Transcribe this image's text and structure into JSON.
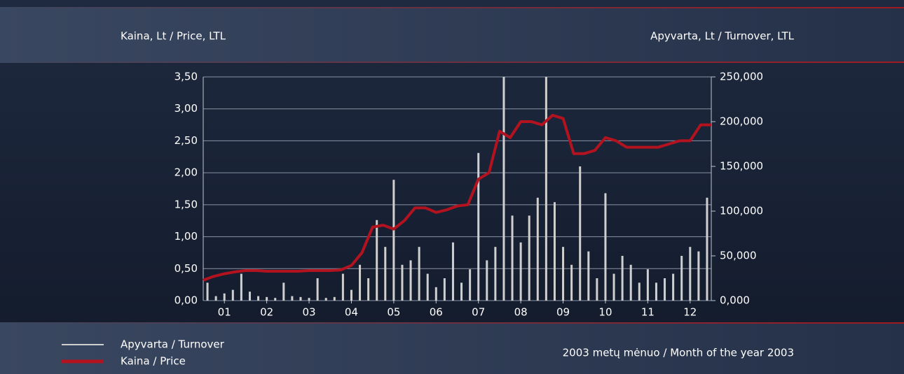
{
  "chart_data": {
    "type": "line",
    "ylabel": "Kaina, Lt / Price, LTL",
    "y2label": "Apyvarta, Lt / Turnover, LTL",
    "xlabel": "2003 metų mėnuo / Month of the year 2003",
    "xlim": [
      0.5,
      12.5
    ],
    "xticks": [
      {
        "value": 1,
        "label": "01"
      },
      {
        "value": 2,
        "label": "02"
      },
      {
        "value": 3,
        "label": "03"
      },
      {
        "value": 4,
        "label": "04"
      },
      {
        "value": 5,
        "label": "05"
      },
      {
        "value": 6,
        "label": "06"
      },
      {
        "value": 7,
        "label": "07"
      },
      {
        "value": 8,
        "label": "08"
      },
      {
        "value": 9,
        "label": "09"
      },
      {
        "value": 10,
        "label": "10"
      },
      {
        "value": 11,
        "label": "11"
      },
      {
        "value": 12,
        "label": "12"
      }
    ],
    "ylim": [
      0,
      3.5
    ],
    "yticks": [
      {
        "value": 0,
        "label": "0,00"
      },
      {
        "value": 0.5,
        "label": "0,50"
      },
      {
        "value": 1,
        "label": "1,00"
      },
      {
        "value": 1.5,
        "label": "1,50"
      },
      {
        "value": 2,
        "label": "2,00"
      },
      {
        "value": 2.5,
        "label": "2,50"
      },
      {
        "value": 3,
        "label": "3,00"
      },
      {
        "value": 3.5,
        "label": "3,50"
      }
    ],
    "y2lim": [
      0,
      250000
    ],
    "y2ticks": [
      {
        "value": 0,
        "label": "0,000"
      },
      {
        "value": 50000,
        "label": "50,000"
      },
      {
        "value": 100000,
        "label": "100,000"
      },
      {
        "value": 150000,
        "label": "150,000"
      },
      {
        "value": 200000,
        "label": "200,000"
      },
      {
        "value": 250000,
        "label": "250,000"
      }
    ],
    "grid": true,
    "series": [
      {
        "name": "Apyvarta / Turnover",
        "color": "#cfcfcf",
        "type": "bar",
        "axis": "y2",
        "x": [
          0.6,
          0.8,
          1.0,
          1.2,
          1.4,
          1.6,
          1.8,
          2.0,
          2.2,
          2.4,
          2.6,
          2.8,
          3.0,
          3.2,
          3.4,
          3.6,
          3.8,
          4.0,
          4.2,
          4.4,
          4.6,
          4.8,
          5.0,
          5.2,
          5.4,
          5.6,
          5.8,
          6.0,
          6.2,
          6.4,
          6.6,
          6.8,
          7.0,
          7.2,
          7.4,
          7.6,
          7.8,
          8.0,
          8.2,
          8.4,
          8.6,
          8.8,
          9.0,
          9.2,
          9.4,
          9.6,
          9.8,
          10.0,
          10.2,
          10.4,
          10.6,
          10.8,
          11.0,
          11.2,
          11.4,
          11.6,
          11.8,
          12.0,
          12.2,
          12.4
        ],
        "values": [
          20000,
          5000,
          8000,
          12000,
          30000,
          10000,
          5000,
          4000,
          3000,
          20000,
          5000,
          4000,
          3000,
          25000,
          3000,
          4000,
          30000,
          12000,
          40000,
          25000,
          90000,
          60000,
          135000,
          40000,
          45000,
          60000,
          30000,
          15000,
          25000,
          65000,
          20000,
          35000,
          165000,
          45000,
          60000,
          250000,
          95000,
          65000,
          95000,
          115000,
          250000,
          110000,
          60000,
          40000,
          150000,
          55000,
          25000,
          120000,
          30000,
          50000,
          40000,
          20000,
          35000,
          20000,
          25000,
          30000,
          50000,
          60000,
          55000,
          115000
        ]
      },
      {
        "name": "Kaina / Price",
        "color": "#b3121f",
        "type": "line",
        "x": [
          0.5,
          0.75,
          1.0,
          1.25,
          1.5,
          1.75,
          2.0,
          2.25,
          2.5,
          2.75,
          3.0,
          3.25,
          3.5,
          3.75,
          4.0,
          4.25,
          4.5,
          4.75,
          5.0,
          5.25,
          5.5,
          5.75,
          6.0,
          6.25,
          6.5,
          6.75,
          7.0,
          7.25,
          7.5,
          7.75,
          8.0,
          8.25,
          8.5,
          8.75,
          9.0,
          9.25,
          9.5,
          9.75,
          10.0,
          10.25,
          10.5,
          10.75,
          11.0,
          11.25,
          11.5,
          11.75,
          12.0,
          12.25,
          12.5
        ],
        "values": [
          0.32,
          0.38,
          0.42,
          0.45,
          0.47,
          0.47,
          0.46,
          0.46,
          0.46,
          0.46,
          0.47,
          0.47,
          0.47,
          0.48,
          0.55,
          0.75,
          1.15,
          1.18,
          1.12,
          1.25,
          1.45,
          1.45,
          1.38,
          1.42,
          1.48,
          1.5,
          1.9,
          2.0,
          2.65,
          2.55,
          2.8,
          2.8,
          2.75,
          2.9,
          2.85,
          2.3,
          2.3,
          2.35,
          2.55,
          2.5,
          2.4,
          2.4,
          2.4,
          2.4,
          2.45,
          2.5,
          2.5,
          2.75,
          2.75
        ]
      }
    ]
  }
}
